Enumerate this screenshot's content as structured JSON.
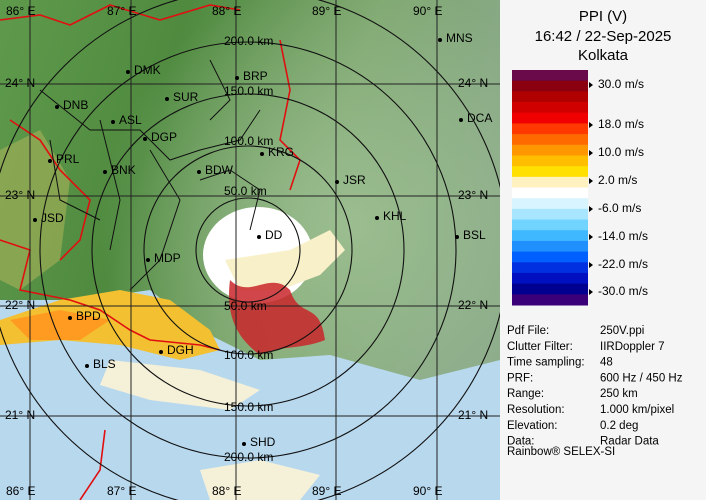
{
  "map": {
    "longitude_labels_top": [
      "86° E",
      "87° E",
      "88° E",
      "89° E",
      "90° E"
    ],
    "longitude_labels_bottom": [
      "86° E",
      "87° E",
      "88° E",
      "89° E",
      "90° E"
    ],
    "latitude_labels_left": [
      "24° N",
      "23° N",
      "22° N",
      "21° N"
    ],
    "latitude_labels_right": [
      "24° N",
      "23° N",
      "22° N",
      "21° N"
    ],
    "range_labels_north": [
      "200.0 km",
      "150.0 km",
      "100.0 km",
      "50.0 km"
    ],
    "range_labels_south": [
      "50.0 km",
      "100.0 km",
      "150.0 km",
      "200.0 km"
    ],
    "cities": [
      "MNS",
      "DMK",
      "BRP",
      "DNB",
      "SUR",
      "ASL",
      "DGP",
      "DCA",
      "PRL",
      "BNK",
      "KRG",
      "BDW",
      "JSR",
      "JSD",
      "KHL",
      "DD",
      "MDP",
      "BSL",
      "BPD",
      "DGH",
      "BLS",
      "SHD"
    ]
  },
  "panel": {
    "product": "PPI (V)",
    "timestamp": "16:42 / 22-Sep-2025",
    "site": "Kolkata",
    "scale_labels": [
      "30.0 m/s",
      "18.0 m/s",
      "10.0 m/s",
      "2.0 m/s",
      "-6.0 m/s",
      "-14.0 m/s",
      "-22.0 m/s",
      "-30.0 m/s"
    ],
    "info": [
      [
        "Pdf File:",
        "250V.ppi"
      ],
      [
        "Clutter Filter:",
        "IIRDoppler 7"
      ],
      [
        "Time sampling:",
        "48"
      ],
      [
        "PRF:",
        "600 Hz / 450 Hz"
      ],
      [
        "Range:",
        "250 km"
      ],
      [
        "Resolution:",
        "1.000 km/pixel"
      ],
      [
        "Elevation:",
        "0.2 deg"
      ],
      [
        "Data:",
        "Radar Data"
      ]
    ],
    "footer": "Rainbow® SELEX-SI"
  }
}
